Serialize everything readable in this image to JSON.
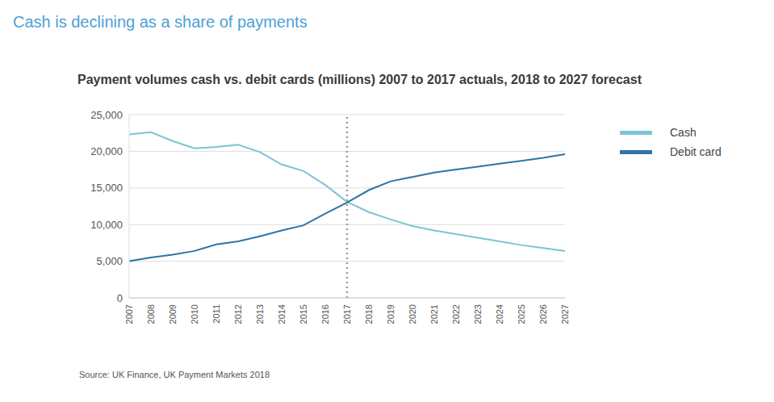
{
  "chart_data": {
    "type": "line",
    "header": "Cash is declining as a share of payments",
    "title": "Payment volumes cash vs. debit cards (millions) 2007 to 2017 actuals, 2018 to 2027 forecast",
    "source": "Source: UK Finance, UK Payment Markets 2018",
    "categories": [
      "2007",
      "2008",
      "2009",
      "2010",
      "2011",
      "2012",
      "2013",
      "2014",
      "2015",
      "2016",
      "2017",
      "2018",
      "2019",
      "2020",
      "2021",
      "2022",
      "2023",
      "2024",
      "2025",
      "2026",
      "2027"
    ],
    "series": [
      {
        "name": "Cash",
        "color": "#7cc4d3",
        "values": [
          22300,
          22600,
          21400,
          20400,
          20600,
          20900,
          19900,
          18200,
          17300,
          15400,
          13100,
          11700,
          10700,
          9800,
          9200,
          8700,
          8200,
          7700,
          7200,
          6800,
          6400
        ]
      },
      {
        "name": "Debit card",
        "color": "#2e74a8",
        "values": [
          5000,
          5500,
          5900,
          6400,
          7300,
          7700,
          8400,
          9200,
          9900,
          11500,
          13000,
          14700,
          15900,
          16500,
          17100,
          17500,
          17900,
          18300,
          18700,
          19100,
          19600
        ]
      }
    ],
    "ylim": [
      0,
      25000
    ],
    "yticks": [
      0,
      {
        "value": 5000,
        "label": "5,000"
      },
      {
        "value": 10000,
        "label": "10,000"
      },
      {
        "value": 15000,
        "label": "15,000"
      },
      {
        "value": 20000,
        "label": "20,000"
      },
      {
        "value": 25000,
        "label": "25,000"
      }
    ],
    "grid": true,
    "legend": "right",
    "reference_lines": [
      {
        "x": "2017",
        "line_style": "dotted"
      }
    ]
  }
}
